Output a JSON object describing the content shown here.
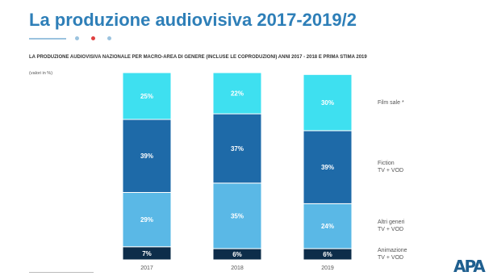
{
  "title": "La produzione audiovisiva 2017-2019/2",
  "subtitle": "LA PRODUZIONE AUDIOVISIVA NAZIONALE PER MACRO-AREA DI GENERE (INCLUSE LE COPRODUZIONI) ANNI 2017 - 2018 E PRIMA STIMA 2019",
  "unit_label": "(valori in %)",
  "logo_text": "APA",
  "colors": {
    "title": "#2e7fb8",
    "dots": [
      "#9bc3df",
      "#e04040",
      "#9bc3df"
    ]
  },
  "chart_data": {
    "type": "bar",
    "stacked": true,
    "categories": [
      "2017",
      "2018",
      "2019"
    ],
    "series": [
      {
        "name": "Animazione TV + VOD",
        "values": [
          7,
          6,
          6
        ],
        "color": "#0d2d4a"
      },
      {
        "name": "Altri generi TV + VOD",
        "values": [
          29,
          35,
          24
        ],
        "color": "#5ab8e6"
      },
      {
        "name": "Fiction TV + VOD",
        "values": [
          39,
          37,
          39
        ],
        "color": "#1e6aa8"
      },
      {
        "name": "Film sale",
        "values": [
          25,
          22,
          30
        ],
        "color": "#3ee0f0"
      }
    ],
    "data_labels": [
      [
        "7%",
        "6%",
        "6%"
      ],
      [
        "29%",
        "35%",
        "24%"
      ],
      [
        "39%",
        "37%",
        "39%"
      ],
      [
        "25%",
        "22%",
        "30%"
      ]
    ],
    "legend_labels": [
      [
        "Animazione",
        "TV + VOD"
      ],
      [
        "Altri generi",
        "TV + VOD"
      ],
      [
        "Fiction",
        "TV + VOD"
      ],
      [
        "Film sale *"
      ]
    ],
    "ylim": [
      0,
      100
    ],
    "grid": false,
    "legend": "right"
  }
}
